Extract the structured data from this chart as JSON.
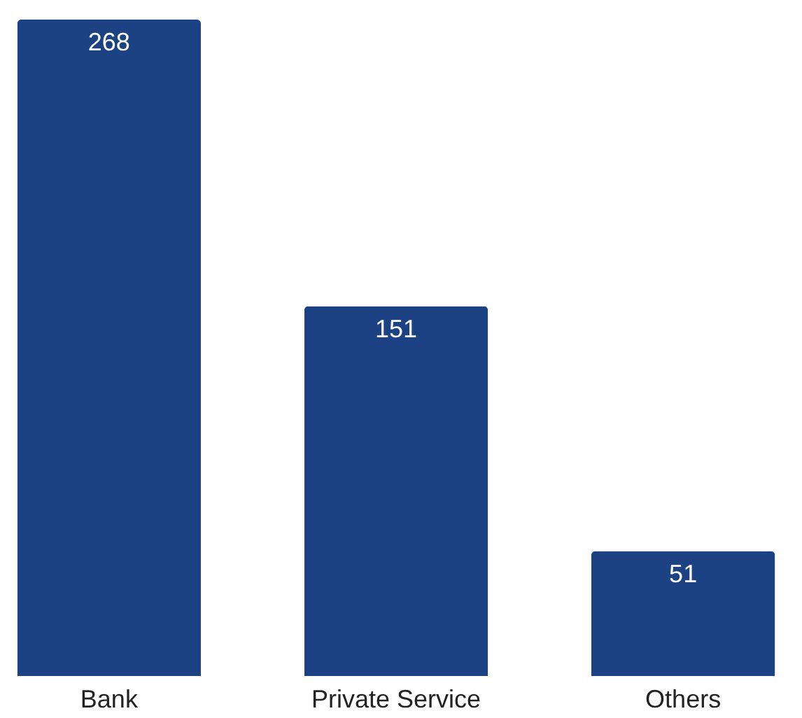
{
  "chart_data": {
    "type": "bar",
    "categories": [
      "Bank",
      "Private Service",
      "Others"
    ],
    "values": [
      268,
      151,
      51
    ],
    "color": "#1c4283",
    "data_labels": true
  }
}
